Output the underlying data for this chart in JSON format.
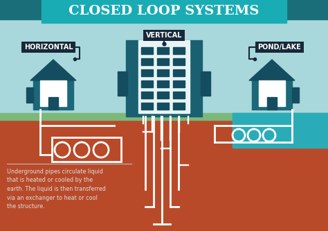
{
  "title": "CLOSED LOOP SYSTEMS",
  "title_color": "#FFFFFF",
  "title_bg_color": "#1AACB4",
  "title_bg_dark": "#1A6E7A",
  "sky_color": "#A8D8DC",
  "ground_top_color": "#B84A2A",
  "ground_bot_color": "#C0472A",
  "grass_color": "#7CB87A",
  "pipe_color": "#FFFFFF",
  "building_color": "#1A6070",
  "building_dark": "#154D60",
  "house_body_color": "#FFFFFF",
  "house_wall_color": "#1A6878",
  "house_roof_color": "#154D60",
  "label_bg_color": "#172838",
  "label_text_color": "#FFFFFF",
  "labels": [
    "HORIZONTAL",
    "VERTICAL",
    "POND/LAKE"
  ],
  "description": "Underground pipes circulate liquid\nthat is heated or cooled by the\nearth. The liquid is then transferred\nvia an exchanger to heat or cool\nthe structure.",
  "pond_color": "#2AACB8",
  "separator_color": "#BBBBBB",
  "desc_text_color": "#DDDDDD",
  "window_color": "#FFFFFF",
  "dark_unit_color": "#154D60"
}
